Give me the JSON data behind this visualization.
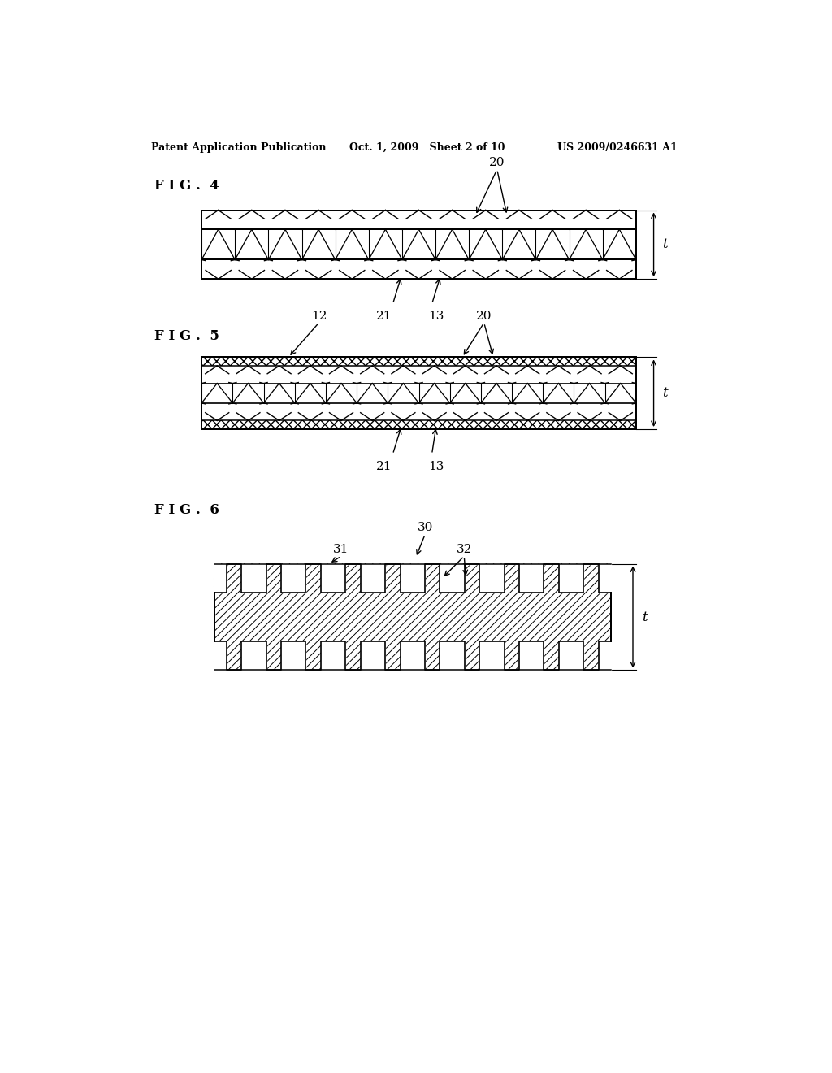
{
  "bg_color": "#ffffff",
  "header_left": "Patent Application Publication",
  "header_center": "Oct. 1, 2009   Sheet 2 of 10",
  "header_right": "US 2009/0246631 A1",
  "fig4_label": "F I G .  4",
  "fig5_label": "F I G .  5",
  "fig6_label": "F I G .  6",
  "line_color": "#000000",
  "lw": 1.3
}
